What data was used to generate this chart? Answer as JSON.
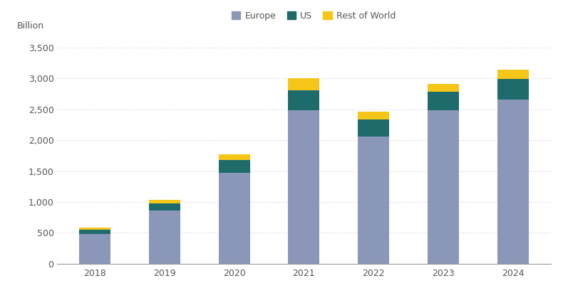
{
  "years": [
    "2018",
    "2019",
    "2020",
    "2021",
    "2022",
    "2023",
    "2024"
  ],
  "europe": [
    480,
    860,
    1470,
    2480,
    2060,
    2480,
    2660
  ],
  "us": [
    75,
    120,
    210,
    330,
    270,
    305,
    330
  ],
  "rest_of_world": [
    35,
    50,
    90,
    190,
    135,
    130,
    150
  ],
  "colors": {
    "europe": "#8B97B8",
    "us": "#1D6B6B",
    "rest_of_world": "#F5C518"
  },
  "ylabel": "Billion",
  "ylim": [
    0,
    3700
  ],
  "yticks": [
    0,
    500,
    1000,
    1500,
    2000,
    2500,
    3000,
    3500
  ],
  "ytick_labels": [
    "0",
    "500",
    "1,000",
    "1,500",
    "2,000",
    "2,500",
    "3,000",
    "3,500"
  ],
  "legend_labels": [
    "Europe",
    "US",
    "Rest of World"
  ],
  "background_color": "#FFFFFF",
  "grid_color": "#CCCCCC",
  "bar_width": 0.45,
  "legend_text_color": "#8B6914",
  "axis_label_color": "#555555",
  "tick_label_color": "#555555"
}
